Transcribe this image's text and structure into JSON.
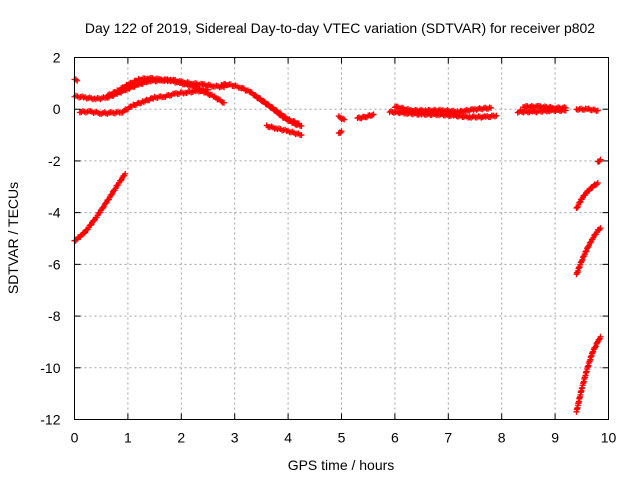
{
  "chart_data": {
    "type": "scatter",
    "title": "Day 122 of 2019, Sidereal Day-to-day VTEC variation (SDTVAR) for receiver p802",
    "xlabel": "GPS time / hours",
    "ylabel": "SDTVAR / TECUs",
    "xlim": [
      0,
      10
    ],
    "ylim": [
      -12,
      2
    ],
    "xticks": [
      "0",
      "1",
      "2",
      "3",
      "4",
      "5",
      "6",
      "7",
      "8",
      "9",
      "10"
    ],
    "yticks": [
      "2",
      "0",
      "-2",
      "-4",
      "-6",
      "-8",
      "-10",
      "-12"
    ],
    "grid": true,
    "marker_color": "#ff0000",
    "marker": "plus",
    "segments": [
      {
        "x": [
          0.0,
          0.05
        ],
        "y": [
          1.15,
          1.1
        ]
      },
      {
        "x": [
          0.0,
          0.2,
          0.4,
          0.6,
          0.8,
          1.0,
          1.2,
          1.4,
          1.6,
          1.8,
          2.0,
          2.2,
          2.4,
          2.6,
          2.8
        ],
        "y": [
          0.5,
          0.45,
          0.4,
          0.45,
          0.6,
          0.8,
          0.95,
          1.1,
          1.1,
          1.15,
          1.05,
          1.0,
          0.95,
          0.9,
          0.85
        ]
      },
      {
        "x": [
          0.6,
          0.8,
          1.0,
          1.2,
          1.4,
          1.6,
          1.8,
          2.0,
          2.2,
          2.4,
          2.6,
          2.8
        ],
        "y": [
          0.5,
          0.7,
          0.95,
          1.15,
          1.2,
          1.15,
          1.1,
          1.0,
          0.9,
          0.7,
          0.5,
          0.25
        ]
      },
      {
        "x": [
          0.1,
          0.3,
          0.5,
          0.7,
          0.9,
          1.1,
          1.3,
          1.5,
          1.7,
          1.9,
          2.1,
          2.3,
          2.5
        ],
        "y": [
          -0.1,
          -0.1,
          -0.15,
          -0.15,
          -0.1,
          0.15,
          0.3,
          0.45,
          0.5,
          0.6,
          0.65,
          0.7,
          0.75
        ]
      },
      {
        "x": [
          2.75,
          2.9,
          3.1,
          3.3,
          3.5,
          3.7,
          3.9,
          4.1,
          4.25
        ],
        "y": [
          0.95,
          0.95,
          0.85,
          0.65,
          0.35,
          0.05,
          -0.3,
          -0.55,
          -0.65
        ]
      },
      {
        "x": [
          3.4,
          3.6,
          3.8,
          4.0,
          4.2
        ],
        "y": [
          0.5,
          0.2,
          -0.1,
          -0.4,
          -0.55
        ]
      },
      {
        "x": [
          3.6,
          3.8,
          4.0,
          4.25
        ],
        "y": [
          -0.65,
          -0.75,
          -0.85,
          -1.0
        ]
      },
      {
        "x": [
          4.95,
          5.05
        ],
        "y": [
          -0.3,
          -0.4
        ]
      },
      {
        "x": [
          4.95,
          5.0
        ],
        "y": [
          -0.95,
          -0.85
        ]
      },
      {
        "x": [
          5.3,
          5.45,
          5.6
        ],
        "y": [
          -0.35,
          -0.3,
          -0.2
        ]
      },
      {
        "x": [
          5.9,
          6.2,
          6.5,
          6.8,
          7.1,
          7.4,
          7.7,
          7.9
        ],
        "y": [
          -0.1,
          -0.15,
          -0.2,
          -0.2,
          -0.25,
          -0.3,
          -0.3,
          -0.25
        ]
      },
      {
        "x": [
          6.0,
          6.3,
          6.6,
          6.9,
          7.2,
          7.5,
          7.8
        ],
        "y": [
          0.1,
          -0.05,
          -0.05,
          -0.05,
          -0.1,
          0.0,
          0.05
        ]
      },
      {
        "x": [
          8.3,
          8.6,
          8.9,
          9.2
        ],
        "y": [
          -0.1,
          -0.1,
          -0.05,
          -0.05
        ]
      },
      {
        "x": [
          8.4,
          8.7,
          9.0,
          9.2
        ],
        "y": [
          0.1,
          0.1,
          0.05,
          0.05
        ]
      },
      {
        "x": [
          9.4,
          9.6,
          9.8
        ],
        "y": [
          0.0,
          0.0,
          -0.05
        ]
      },
      {
        "x": [
          0.0,
          0.2,
          0.4,
          0.6,
          0.8,
          0.95
        ],
        "y": [
          -5.1,
          -4.75,
          -4.2,
          -3.6,
          -2.95,
          -2.5
        ]
      },
      {
        "x": [
          9.8,
          9.85
        ],
        "y": [
          -2.05,
          -1.95
        ]
      },
      {
        "x": [
          9.4,
          9.5,
          9.6,
          9.7,
          9.8
        ],
        "y": [
          -3.85,
          -3.45,
          -3.2,
          -3.0,
          -2.85
        ]
      },
      {
        "x": [
          9.4,
          9.5,
          9.6,
          9.7,
          9.8,
          9.85
        ],
        "y": [
          -6.4,
          -5.85,
          -5.4,
          -5.0,
          -4.7,
          -4.6
        ]
      },
      {
        "x": [
          9.4,
          9.5,
          9.6,
          9.7,
          9.8,
          9.85
        ],
        "y": [
          -11.7,
          -10.8,
          -10.05,
          -9.4,
          -9.0,
          -8.8
        ]
      }
    ]
  }
}
